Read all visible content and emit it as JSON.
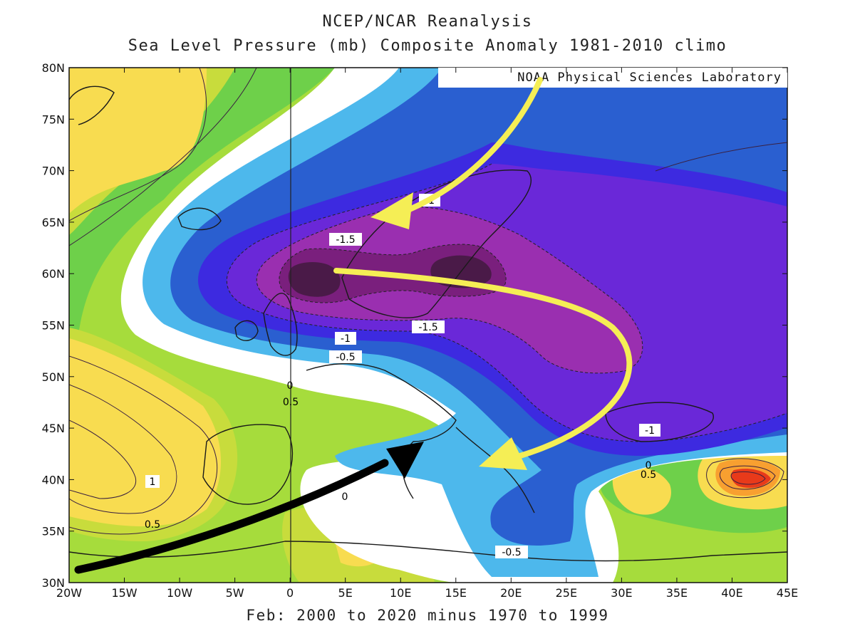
{
  "header": {
    "title": "NCEP/NCAR Reanalysis",
    "subtitle": "Sea Level Pressure (mb) Composite Anomaly 1981-2010 climo"
  },
  "footer": {
    "period": "Feb: 2000 to 2020 minus 1970 to 1999"
  },
  "credit": "NOAA Physical Sciences Laboratory",
  "axes": {
    "lat_labels": [
      "80N",
      "75N",
      "70N",
      "65N",
      "60N",
      "55N",
      "50N",
      "45N",
      "40N",
      "35N",
      "30N"
    ],
    "lon_labels": [
      "20W",
      "15W",
      "10W",
      "5W",
      "0",
      "5E",
      "10E",
      "15E",
      "20E",
      "25E",
      "30E",
      "35E",
      "40E",
      "45E"
    ]
  },
  "contour_labels": {
    "m1_top": "-1",
    "m15_norway": "-1.5",
    "m15_center": "-1.5",
    "m1_north_sea": "-1",
    "m05_north_sea": "-0.5",
    "zero_channel": "0",
    "p05_bay": "0.5",
    "p1_atlantic": "1",
    "p05_atlantic": "0.5",
    "zero_med": "0",
    "m05_med": "-0.5",
    "m1_black_sea": "-1",
    "zero_turkey": "0",
    "p05_turkey": "0.5"
  },
  "colors": {
    "deep_purple": "#4a1a48",
    "dark_purple": "#7a1f7d",
    "purple": "#9a2fb0",
    "violet": "#6a28d8",
    "indigo": "#3d2ae0",
    "blue": "#2a5fd0",
    "light_blue": "#4db8ec",
    "white": "#ffffff",
    "light_green": "#a6dc3c",
    "green": "#6ed04a",
    "yellow_green": "#c8dc3c",
    "yellow": "#f8dc50",
    "orange": "#f8a030",
    "red": "#e83a1a",
    "arrow_yellow": "#f5ee55",
    "arrow_black": "#000000"
  }
}
